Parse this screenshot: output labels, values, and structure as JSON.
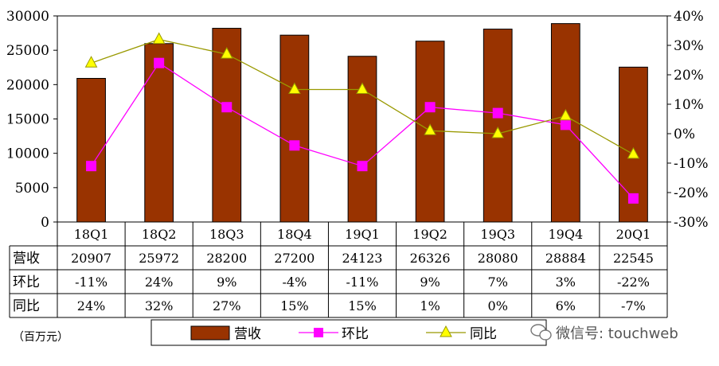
{
  "chart_data": {
    "type": "bar",
    "categories": [
      "18Q1",
      "18Q2",
      "18Q3",
      "18Q4",
      "19Q1",
      "19Q2",
      "19Q3",
      "19Q4",
      "20Q1"
    ],
    "series": [
      {
        "name": "营收",
        "type": "bar",
        "axis": "left",
        "color": "#993300",
        "values": [
          20907,
          25972,
          28200,
          27200,
          24123,
          26326,
          28080,
          28884,
          22545
        ]
      },
      {
        "name": "环比",
        "type": "line",
        "axis": "right",
        "color": "#ff00ff",
        "marker": "square",
        "values": [
          -11,
          24,
          9,
          -4,
          -11,
          9,
          7,
          3,
          -22
        ]
      },
      {
        "name": "同比",
        "type": "line",
        "axis": "right",
        "color": "#999900",
        "marker": "triangle",
        "marker_fill": "#ffff00",
        "values": [
          24,
          32,
          27,
          15,
          15,
          1,
          0,
          6,
          -7
        ]
      }
    ],
    "table_rows": [
      {
        "label": "营收",
        "cells": [
          "20907",
          "25972",
          "28200",
          "27200",
          "24123",
          "26326",
          "28080",
          "28884",
          "22545"
        ]
      },
      {
        "label": "环比",
        "cells": [
          "-11%",
          "24%",
          "9%",
          "-4%",
          "-11%",
          "9%",
          "7%",
          "3%",
          "-22%"
        ]
      },
      {
        "label": "同比",
        "cells": [
          "24%",
          "32%",
          "27%",
          "15%",
          "15%",
          "1%",
          "0%",
          "6%",
          "-7%"
        ]
      }
    ],
    "y_left": {
      "ylim": [
        0,
        30000
      ],
      "ticks": [
        "0",
        "5000",
        "10000",
        "15000",
        "20000",
        "25000",
        "30000"
      ]
    },
    "y_right": {
      "ylim": [
        -30,
        40
      ],
      "ticks": [
        "-30%",
        "-20%",
        "-10%",
        "0%",
        "10%",
        "20%",
        "30%",
        "40%"
      ]
    },
    "unit_label": "（百万元）",
    "legend": {
      "position": "bottom",
      "entries": [
        "营收",
        "环比",
        "同比"
      ]
    },
    "watermark": "微信号: touchweb",
    "grid": false
  }
}
